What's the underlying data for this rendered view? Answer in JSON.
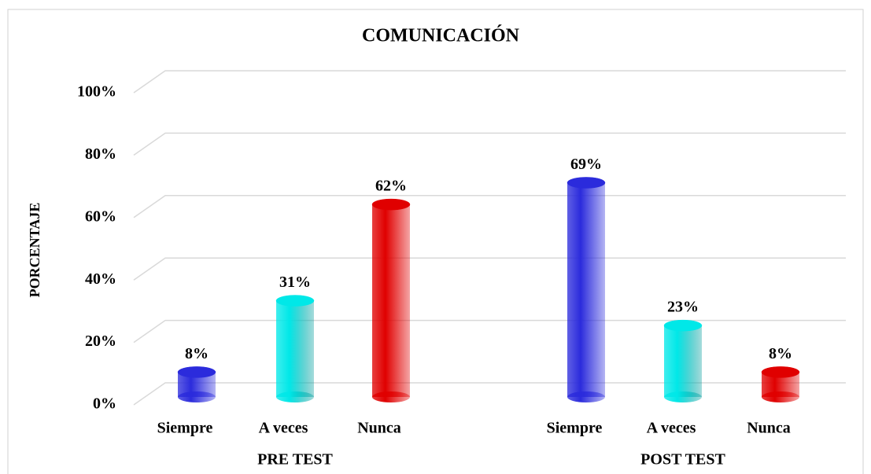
{
  "chart_data": {
    "type": "bar",
    "title": "COMUNICACIÓN",
    "y_label": "PORCENTAJE",
    "ylim": [
      0,
      100
    ],
    "yticks": [
      {
        "value": 0,
        "label": "0%"
      },
      {
        "value": 20,
        "label": "20%"
      },
      {
        "value": 40,
        "label": "40%"
      },
      {
        "value": 60,
        "label": "60%"
      },
      {
        "value": 80,
        "label": "80%"
      },
      {
        "value": 100,
        "label": "100%"
      }
    ],
    "grid": true,
    "colors": [
      "#2b2bdc",
      "#00e8e8",
      "#e00000"
    ],
    "groups": [
      {
        "name": "PRE TEST",
        "categories": [
          "Siempre",
          "A veces",
          "Nunca"
        ],
        "values": [
          8,
          31,
          62
        ],
        "value_labels": [
          "8%",
          "31%",
          "62%"
        ]
      },
      {
        "name": "POST TEST",
        "categories": [
          "Siempre",
          "A veces",
          "Nunca"
        ],
        "values": [
          69,
          23,
          8
        ],
        "value_labels": [
          "69%",
          "23%",
          "8%"
        ]
      }
    ]
  }
}
